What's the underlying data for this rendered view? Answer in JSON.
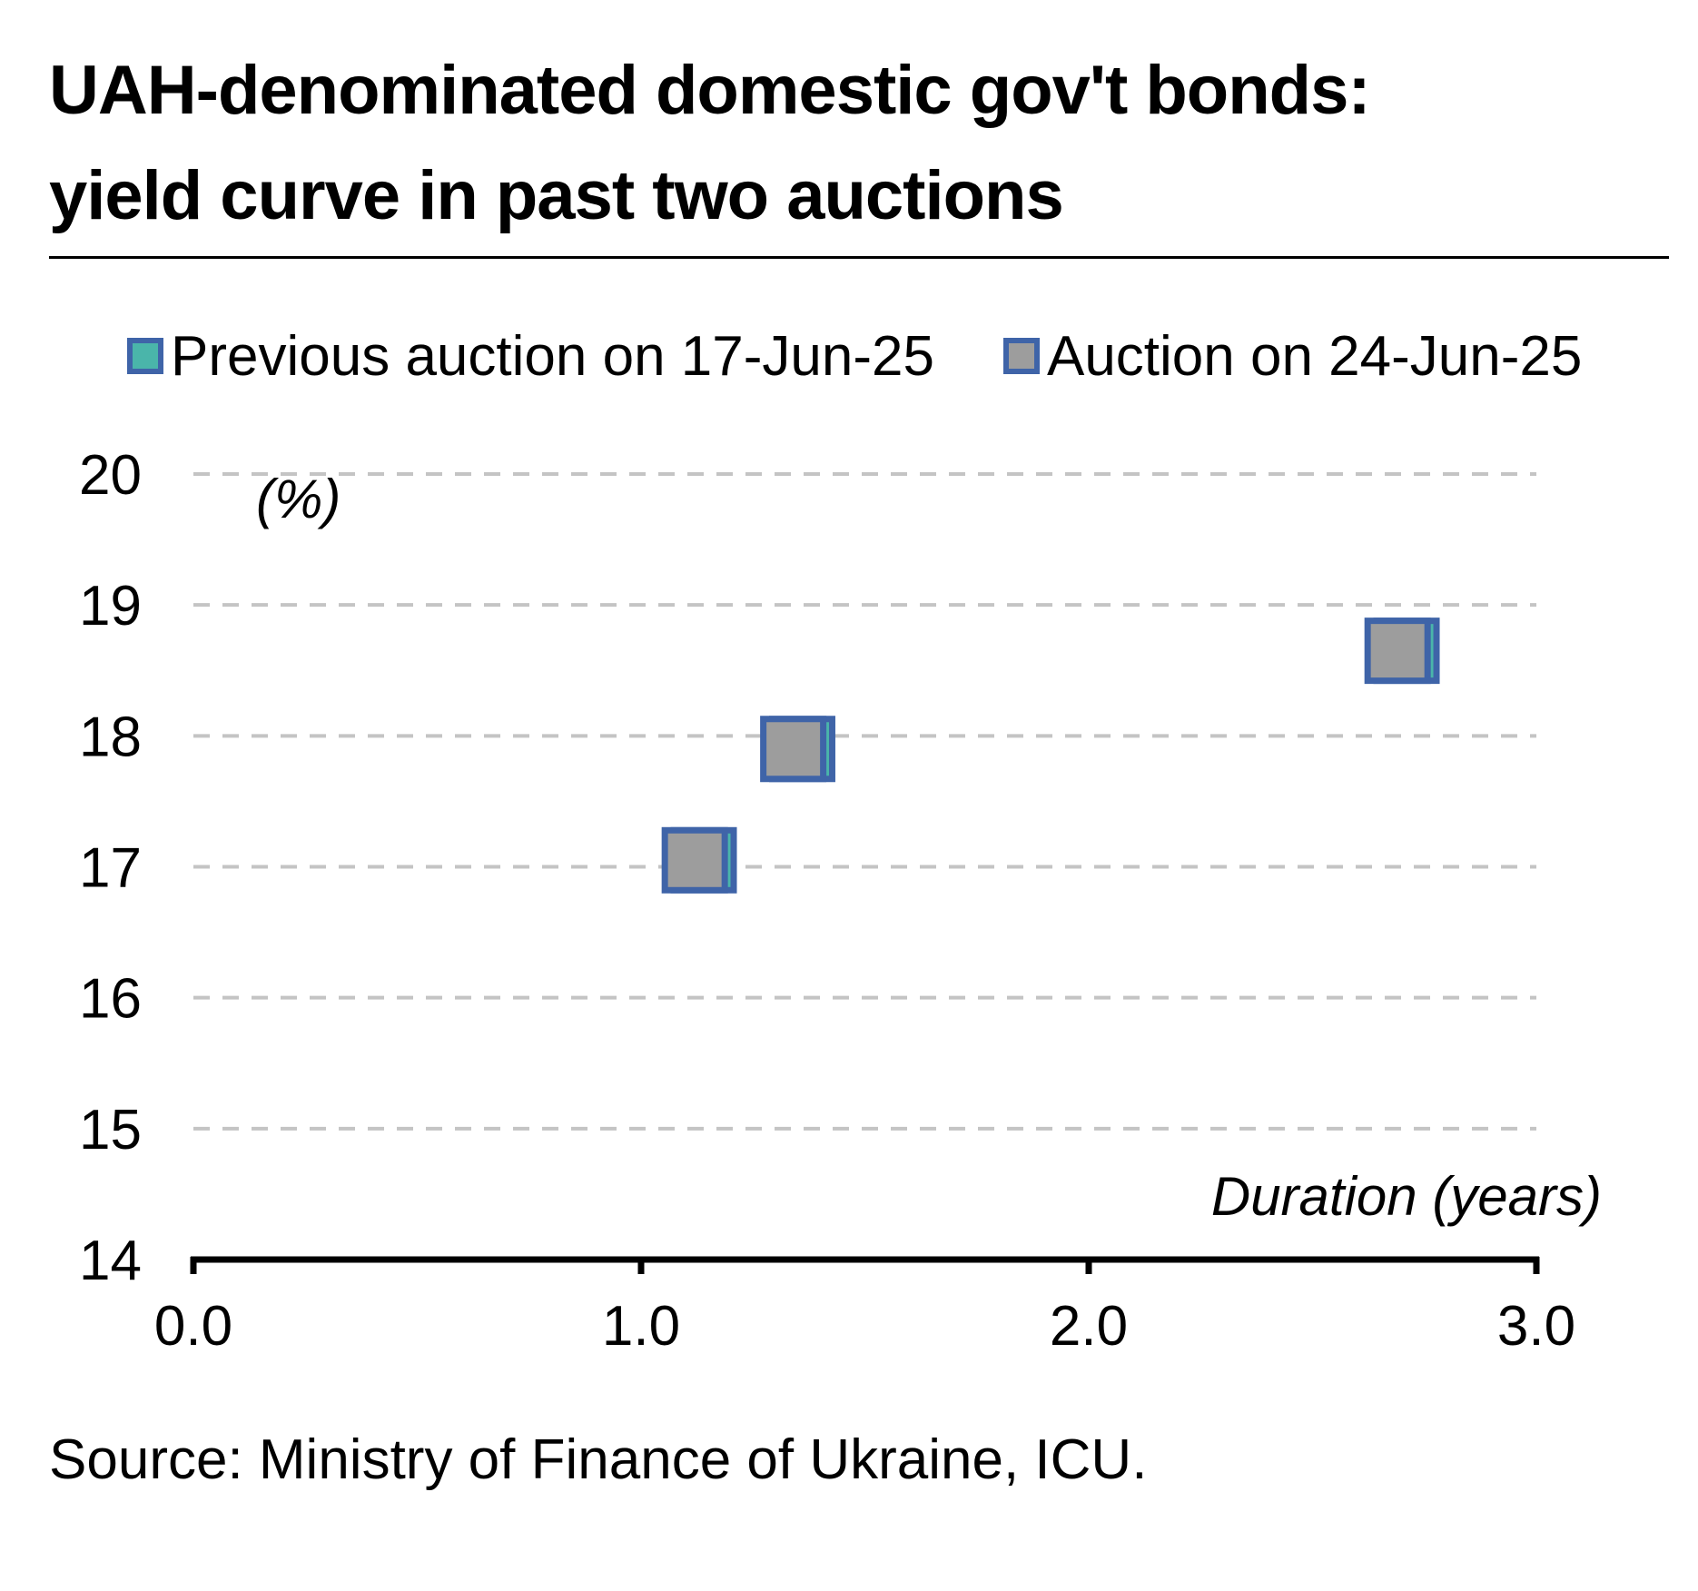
{
  "header": {
    "title_line1": "UAH-denominated domestic gov't bonds:",
    "title_line2": "yield curve in past two auctions"
  },
  "footer": {
    "source": "Source: Ministry of Finance of Ukraine, ICU."
  },
  "chart_data": {
    "type": "scatter",
    "title": "UAH-denominated domestic gov't bonds: yield curve in past two auctions",
    "xlabel": "Duration (years)",
    "ylabel": "(%)",
    "xlim": [
      0.0,
      3.0
    ],
    "ylim": [
      14,
      20
    ],
    "x_ticks": [
      0.0,
      1.0,
      2.0,
      3.0
    ],
    "x_tick_labels": [
      "0.0",
      "1.0",
      "2.0",
      "3.0"
    ],
    "y_ticks": [
      14,
      15,
      16,
      17,
      18,
      19,
      20
    ],
    "y_tick_labels": [
      "14",
      "15",
      "16",
      "17",
      "18",
      "19",
      "20"
    ],
    "grid": "horizontal dashed",
    "legend": "top",
    "series": [
      {
        "name": "Previous auction on 17-Jun-25",
        "fill": "#4ab5aa",
        "stroke": "#3f64a8",
        "points": [
          {
            "x": 1.14,
            "y": 17.05
          },
          {
            "x": 1.36,
            "y": 17.9
          },
          {
            "x": 2.71,
            "y": 18.65
          }
        ]
      },
      {
        "name": "Auction on 24-Jun-25",
        "fill": "#9d9d9d",
        "stroke": "#3f64a8",
        "points": [
          {
            "x": 1.12,
            "y": 17.05
          },
          {
            "x": 1.34,
            "y": 17.9
          },
          {
            "x": 2.69,
            "y": 18.65
          }
        ]
      }
    ]
  }
}
